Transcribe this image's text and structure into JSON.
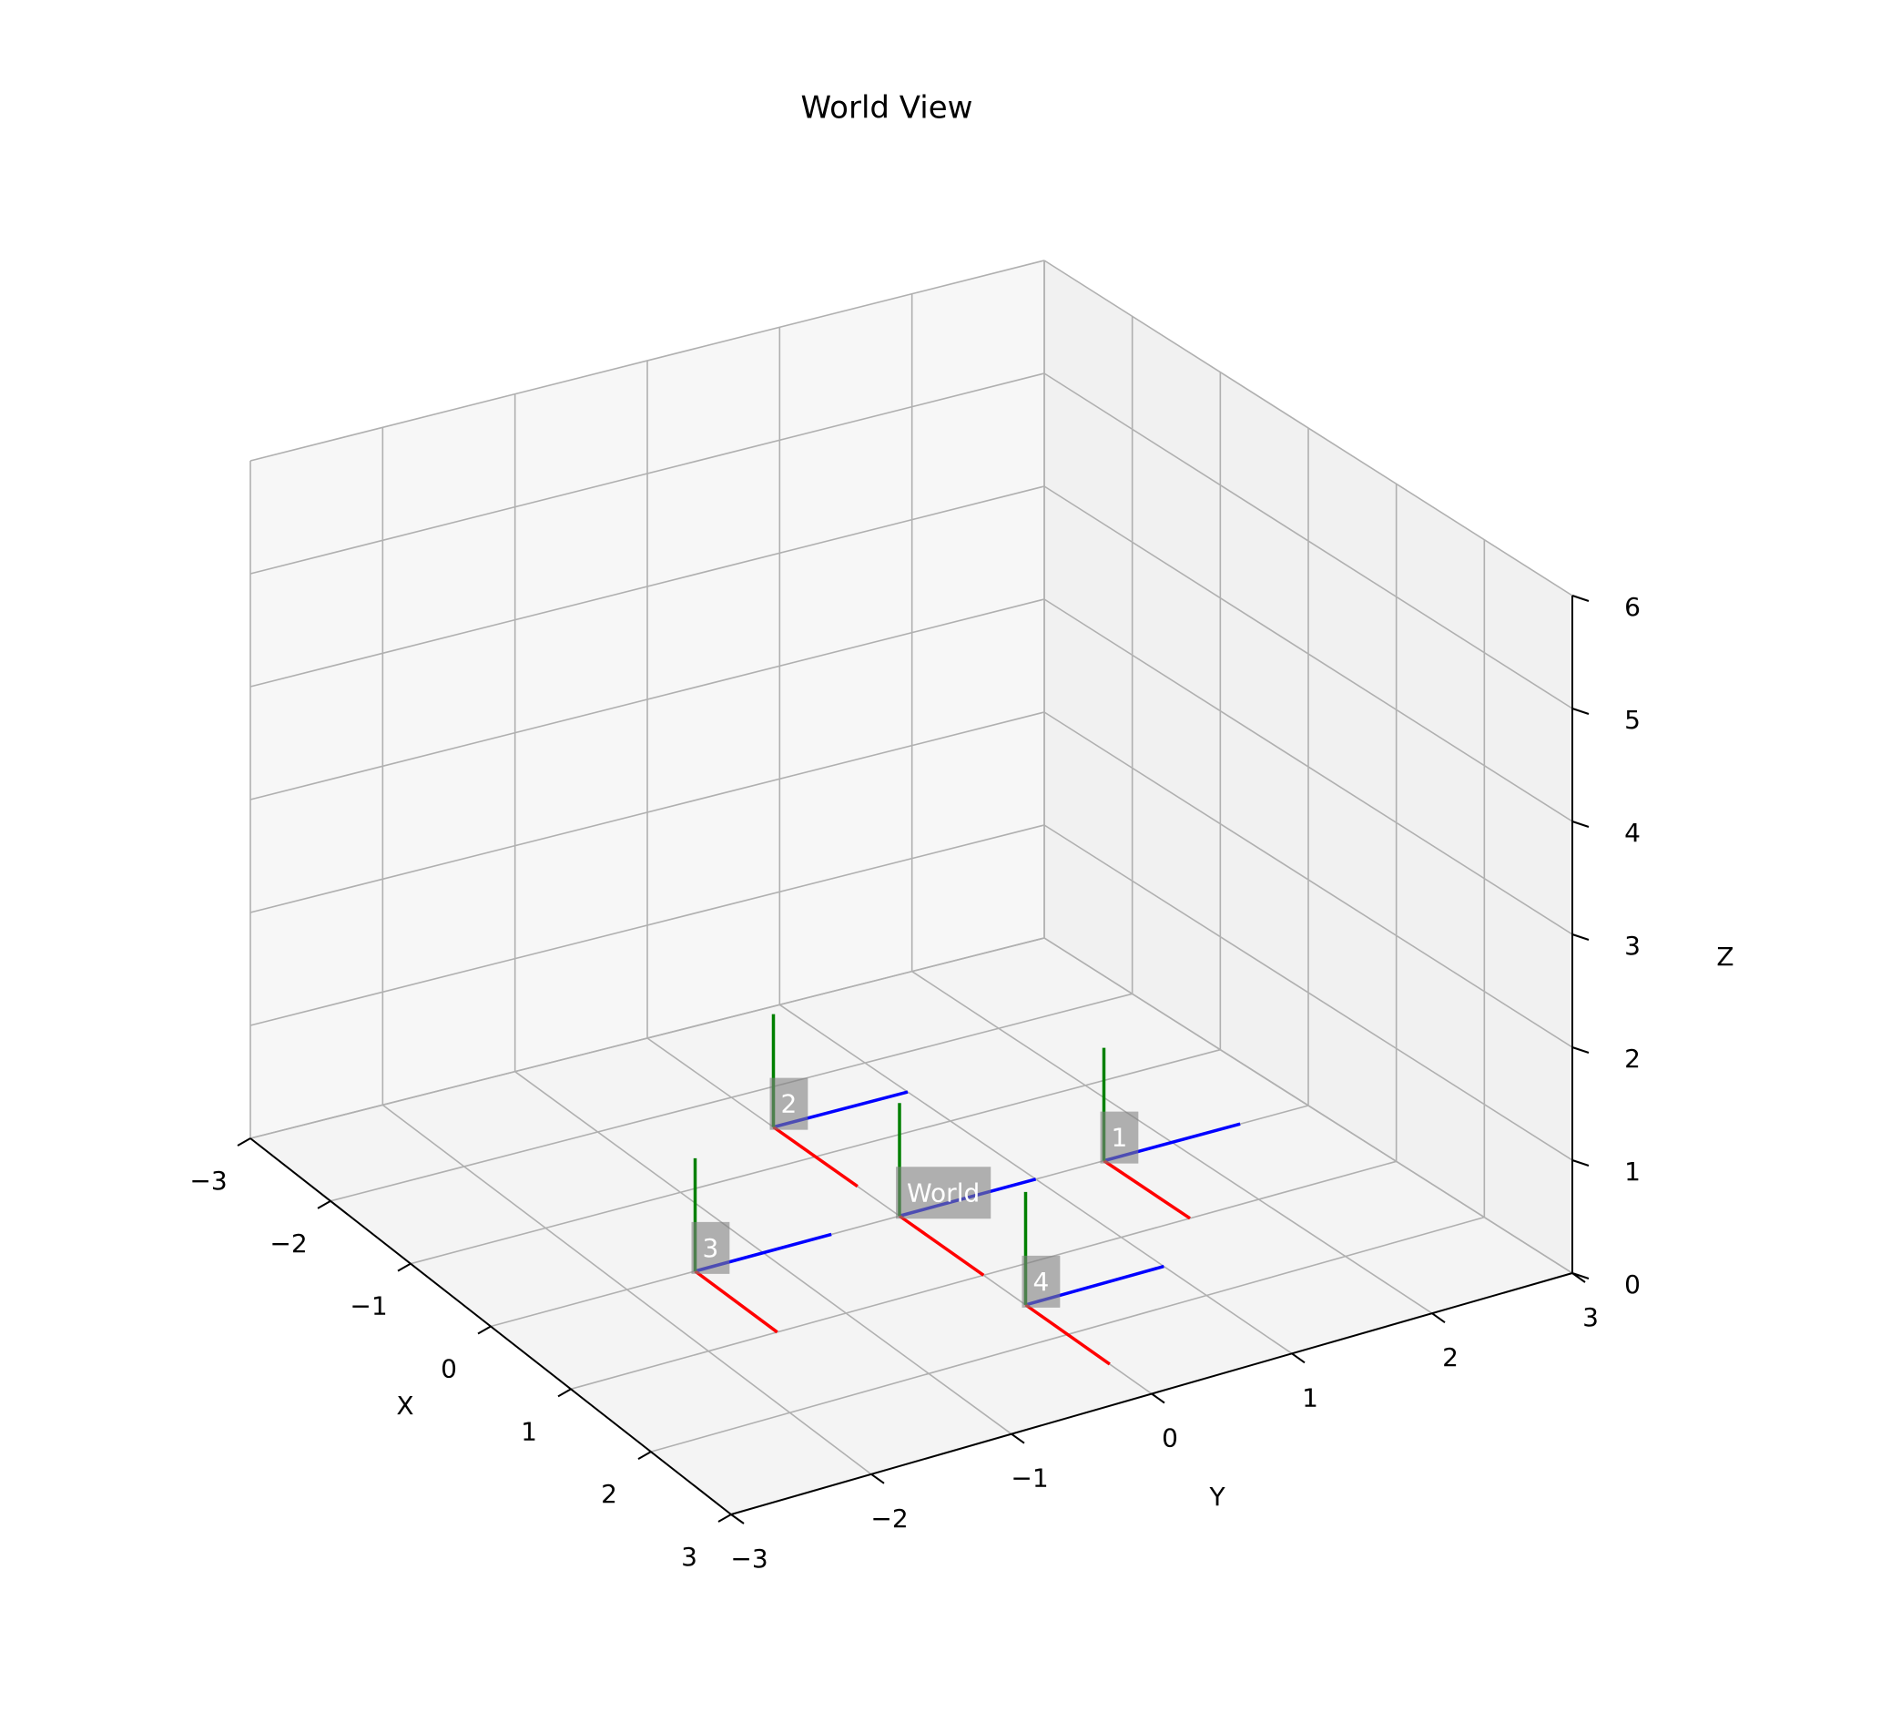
{
  "chart_data": {
    "type": "3d-frames",
    "title": "World View",
    "xlabel": "X",
    "ylabel": "Y",
    "zlabel": "Z",
    "xlim": [
      -3,
      3
    ],
    "ylim": [
      -3,
      3
    ],
    "zlim": [
      0,
      6
    ],
    "xticks": [
      -3,
      -2,
      -1,
      0,
      1,
      2,
      3
    ],
    "yticks": [
      -3,
      -2,
      -1,
      0,
      1,
      2,
      3
    ],
    "zticks": [
      0,
      1,
      2,
      3,
      4,
      5,
      6
    ],
    "grid": true,
    "axis_colors": {
      "x_axis": "#ff0000",
      "y_axis": "#0000ff",
      "z_axis": "#008000"
    },
    "axis_length": 1,
    "frames": [
      {
        "label": "World",
        "origin": [
          0,
          0,
          0
        ]
      },
      {
        "label": "1",
        "origin": [
          0,
          1.5,
          0
        ]
      },
      {
        "label": "2",
        "origin": [
          -1.5,
          0,
          0
        ]
      },
      {
        "label": "3",
        "origin": [
          0,
          -1.5,
          0
        ]
      },
      {
        "label": "4",
        "origin": [
          1.5,
          0,
          0
        ]
      }
    ]
  }
}
